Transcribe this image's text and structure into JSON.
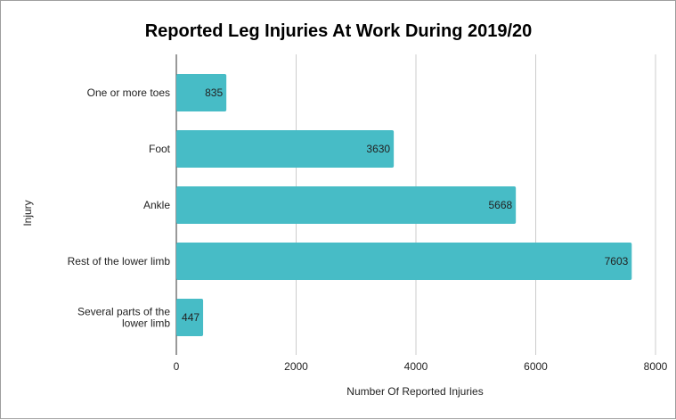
{
  "chart_data": {
    "type": "bar",
    "orientation": "horizontal",
    "title": "Reported Leg Injuries At Work During 2019/20",
    "xlabel": "Number Of Reported Injuries",
    "ylabel": "Injury",
    "categories": [
      [
        "One or more toes"
      ],
      [
        "Foot"
      ],
      [
        "Ankle"
      ],
      [
        "Rest of the lower limb"
      ],
      [
        "Several parts of the",
        "lower limb"
      ]
    ],
    "values": [
      835,
      3630,
      5668,
      7603,
      447
    ],
    "xlim": [
      0,
      8000
    ],
    "xticks": [
      "0",
      "2000",
      "4000",
      "6000",
      "8000"
    ],
    "tick_values": [
      0,
      2000,
      4000,
      6000,
      8000
    ],
    "grid": true,
    "legend": "none",
    "bar_color": "#47bcc6",
    "gridline_color": "#cccccc"
  }
}
